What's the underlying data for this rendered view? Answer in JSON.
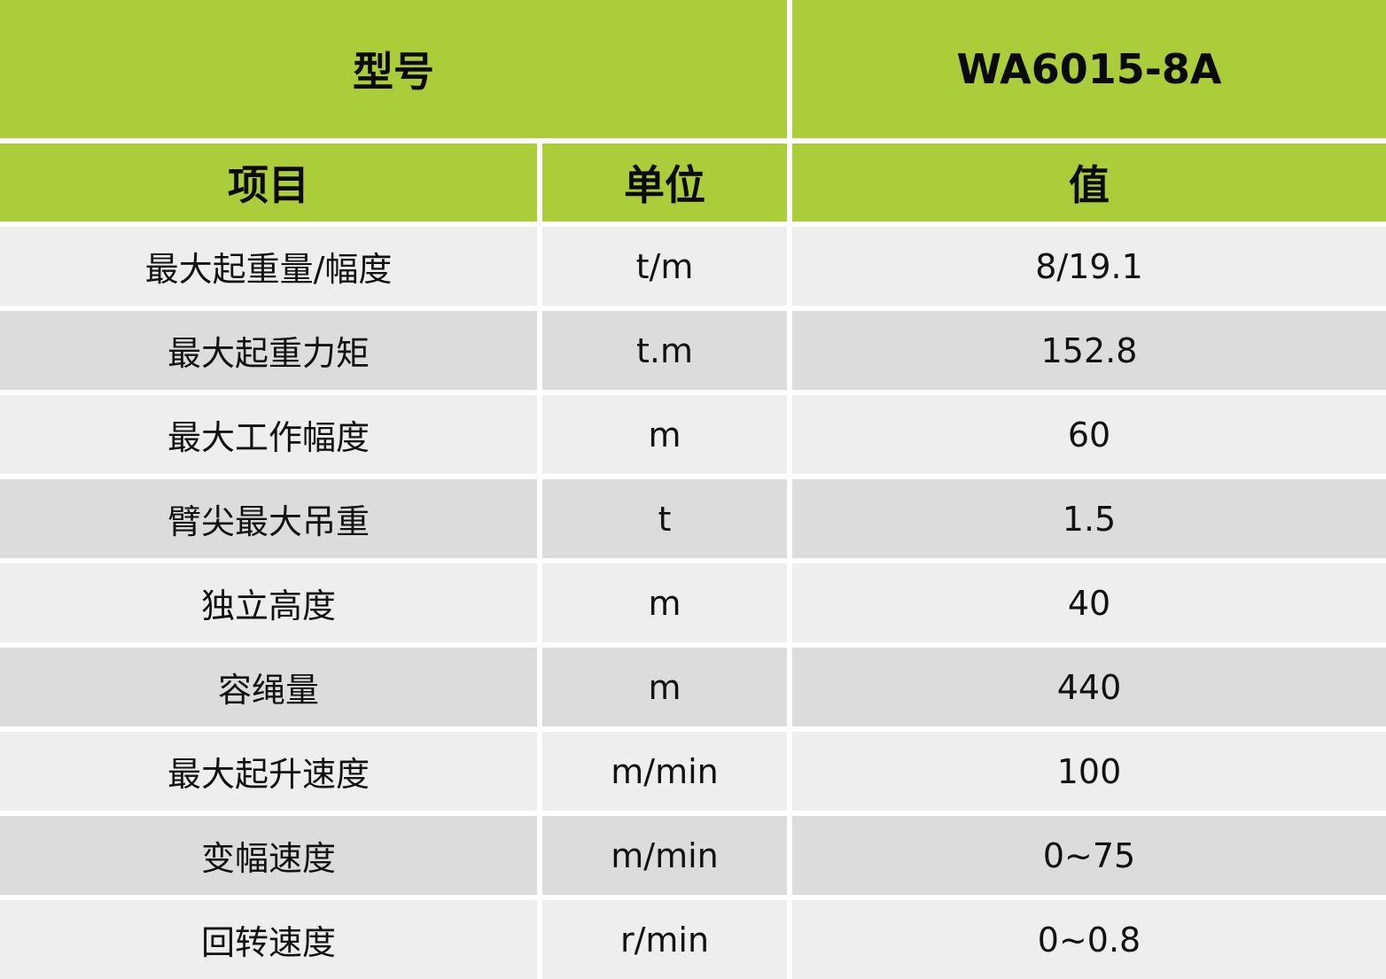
{
  "header": {
    "model_label": "型号",
    "model_value": "WA6015-8A"
  },
  "columns": {
    "item": "项目",
    "unit": "单位",
    "value": "值"
  },
  "rows": [
    {
      "item": "最大起重量/幅度",
      "unit": "t/m",
      "value": "8/19.1"
    },
    {
      "item": "最大起重力矩",
      "unit": "t.m",
      "value": "152.8"
    },
    {
      "item": "最大工作幅度",
      "unit": "m",
      "value": "60"
    },
    {
      "item": "臂尖最大吊重",
      "unit": "t",
      "value": "1.5"
    },
    {
      "item": "独立高度",
      "unit": "m",
      "value": "40"
    },
    {
      "item": "容绳量",
      "unit": "m",
      "value": "440"
    },
    {
      "item": "最大起升速度",
      "unit": "m/min",
      "value": "100"
    },
    {
      "item": "变幅速度",
      "unit": "m/min",
      "value": "0~75"
    },
    {
      "item": "回转速度",
      "unit": "r/min",
      "value": "0~0.8"
    }
  ],
  "colors": {
    "header_green": "#abcd39",
    "row_light": "#eeeeee",
    "row_dark": "#dcdcdc"
  }
}
